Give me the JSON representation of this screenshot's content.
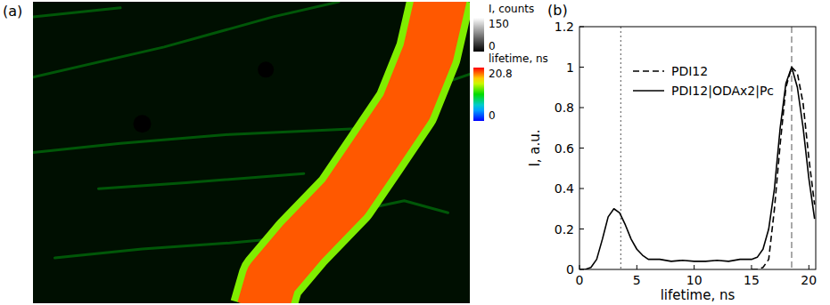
{
  "chart_data": [
    {
      "type": "image",
      "title": "(a)",
      "intensity_colorbar": {
        "label": "I, counts",
        "range": [
          0,
          150
        ],
        "ticks": [
          0,
          150
        ]
      },
      "lifetime_colorbar": {
        "label": "lifetime, ns",
        "range": [
          0,
          20.8
        ],
        "ticks": [
          0,
          20.8
        ]
      },
      "background": {
        "lifetime": 10,
        "intensity": 10
      },
      "fibers": {
        "lifetime": 10,
        "intensity": 60
      },
      "stripe_edge": {
        "lifetime": 13,
        "intensity": 150
      },
      "stripe": {
        "lifetime": 19,
        "intensity": 150
      },
      "spots": {
        "lifetime": 0,
        "intensity": 0
      }
    },
    {
      "type": "line",
      "title": "(b)",
      "x_label": "lifetime, ns",
      "y_label": "I, a.u.",
      "x": [
        0,
        0.5,
        1,
        1.5,
        2,
        2.5,
        3,
        3.5,
        4,
        4.5,
        5,
        5.5,
        6,
        6.5,
        7,
        8,
        9,
        10,
        11,
        12,
        13,
        14,
        15,
        15.5,
        16,
        16.5,
        17,
        17.5,
        18,
        18.5,
        19,
        19.5,
        20,
        20.5
      ],
      "series": [
        {
          "name": "PDI12",
          "color": "#000000",
          "line_style": "dashed",
          "values": [
            null,
            null,
            null,
            null,
            null,
            null,
            null,
            null,
            null,
            null,
            null,
            null,
            null,
            null,
            null,
            null,
            null,
            null,
            null,
            null,
            null,
            null,
            0,
            0,
            0.01,
            0.05,
            0.3,
            0.62,
            0.9,
            1,
            0.97,
            0.82,
            0.55,
            0.32
          ]
        },
        {
          "name": "PDI12|ODAx2|Pc",
          "color": "#000000",
          "line_style": "solid",
          "values": [
            0,
            0,
            0.01,
            0.05,
            0.15,
            0.26,
            0.3,
            0.28,
            0.22,
            0.15,
            0.1,
            0.07,
            0.05,
            0.05,
            0.05,
            0.04,
            0.045,
            0.04,
            0.04,
            0.045,
            0.04,
            0.05,
            0.05,
            0.06,
            0.1,
            0.2,
            0.4,
            0.7,
            0.92,
            1,
            0.9,
            0.7,
            0.45,
            0.25
          ]
        }
      ],
      "xlim": [
        0,
        20.6
      ],
      "ylim": [
        0,
        1.2
      ],
      "xticks": [
        0,
        5,
        10,
        15,
        20
      ],
      "yticks": [
        0,
        0.2,
        0.4,
        0.6,
        0.8,
        1,
        1.2
      ],
      "legend": "upper center",
      "vlines": [
        {
          "x": 3.6,
          "line_style": "dotted"
        },
        {
          "x": 18.5,
          "line_style": "dashed"
        }
      ]
    }
  ]
}
